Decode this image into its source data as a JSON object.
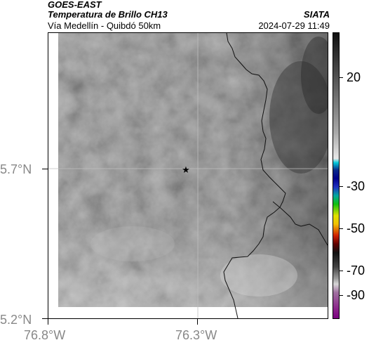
{
  "header": {
    "title_line1": "GOES-EAST",
    "title_line2": "Temperatura de Brillo CH13",
    "subtitle": "Vía Medellín - Quibdó 50km",
    "source": "SIATA",
    "datetime": "2024-07-29 11:49"
  },
  "map": {
    "marker_symbol": "★",
    "lat_ticks": [
      "5.7°N",
      "5.2°N"
    ],
    "lon_ticks": [
      "76.8°W",
      "76.3°W"
    ],
    "gridlines": true
  },
  "colorbar": {
    "units_label": "",
    "ticks": [
      "20",
      "-30",
      "-50",
      "-70",
      "-90"
    ]
  },
  "colors": {
    "background": "#ffffff",
    "gridline": "#bfbfbf",
    "border_line": "#111111",
    "tick_label": "#888888"
  }
}
